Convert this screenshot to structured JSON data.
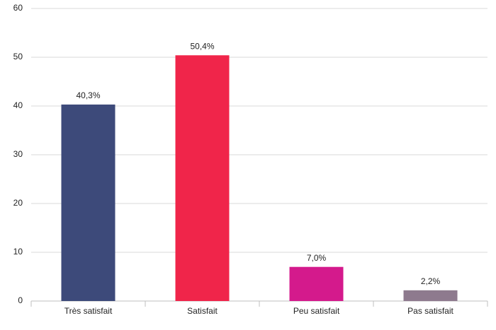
{
  "chart_data": {
    "type": "bar",
    "categories": [
      "Très satisfait",
      "Satisfait",
      "Peu satisfait",
      "Pas satisfait"
    ],
    "values": [
      40.3,
      50.4,
      7.0,
      2.2
    ],
    "value_labels": [
      "40,3%",
      "50,4%",
      "7,0%",
      "2,2%"
    ],
    "colors": [
      "#3d4a7a",
      "#f0254a",
      "#d41a8c",
      "#8e7a8e"
    ],
    "ylim": [
      0,
      60
    ],
    "yticks": [
      0,
      10,
      20,
      30,
      40,
      50,
      60
    ],
    "grid": true
  }
}
